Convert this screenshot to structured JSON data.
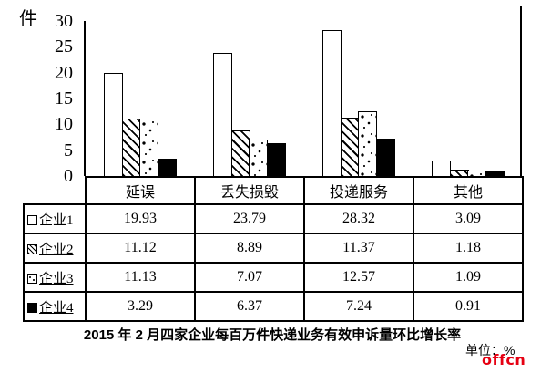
{
  "chart_data": {
    "type": "bar",
    "title": "2015 年 2 月四家企业每百万件快递业务有效申诉量环比增长率",
    "ylabel": "件",
    "ylim": [
      0,
      30
    ],
    "yticks": [
      0,
      5,
      10,
      15,
      20,
      25,
      30
    ],
    "grid": false,
    "legend_position": "table-left-column",
    "categories": [
      "延误",
      "丢失损毁",
      "投递服务",
      "其他"
    ],
    "series": [
      {
        "name": "企业1",
        "pattern": "white",
        "underlined": false,
        "values": [
          19.93,
          23.79,
          28.32,
          3.09
        ]
      },
      {
        "name": "企业2",
        "pattern": "diagonal-hatch",
        "underlined": true,
        "values": [
          11.12,
          8.89,
          11.37,
          1.18
        ]
      },
      {
        "name": "企业3",
        "pattern": "dots",
        "underlined": true,
        "values": [
          11.13,
          7.07,
          12.57,
          1.09
        ]
      },
      {
        "name": "企业4",
        "pattern": "solid-black",
        "underlined": true,
        "values": [
          3.29,
          6.37,
          7.24,
          0.91
        ]
      }
    ]
  },
  "unit_note": "单位：%",
  "watermark": "offcn",
  "colors": {
    "ink": "#000000",
    "watermark_red": "#e60012",
    "background": "#ffffff"
  }
}
